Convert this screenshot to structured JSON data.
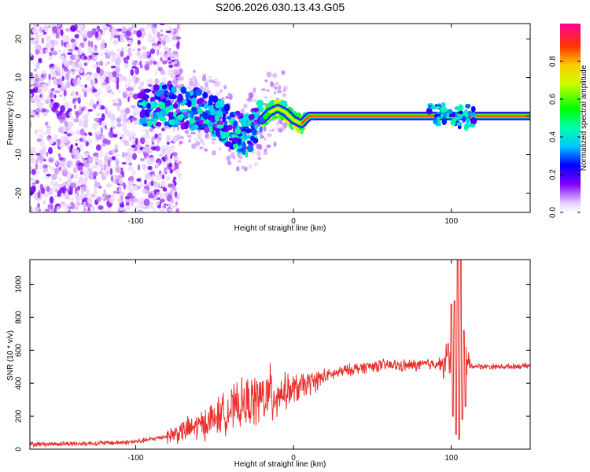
{
  "figure_title": "S206.2026.030.13.43.G05",
  "chart_data": [
    {
      "type": "heatmap",
      "title": "S206.2026.030.13.43.G05",
      "xlabel": "Height of straight line (km)",
      "ylabel": "Frequency (Hz)",
      "xlim": [
        -167,
        150
      ],
      "ylim": [
        -25,
        24
      ],
      "xticks": [
        -100,
        0,
        100
      ],
      "yticks": [
        -20,
        -10,
        0,
        10,
        20
      ],
      "colorbar": {
        "label": "Normalized spectral amplitude",
        "range": [
          0,
          1
        ],
        "ticks": [
          0.0,
          0.2,
          0.4,
          0.6,
          0.8
        ]
      },
      "ridge": [
        {
          "x": -95,
          "freq": 2
        },
        {
          "x": -80,
          "freq": 3
        },
        {
          "x": -70,
          "freq": 2
        },
        {
          "x": -60,
          "freq": 2
        },
        {
          "x": -50,
          "freq": 0
        },
        {
          "x": -40,
          "freq": -3
        },
        {
          "x": -30,
          "freq": -5
        },
        {
          "x": -20,
          "freq": -1
        },
        {
          "x": -15,
          "freq": 1
        },
        {
          "x": -10,
          "freq": 2
        },
        {
          "x": -5,
          "freq": 1
        },
        {
          "x": 0,
          "freq": -1
        },
        {
          "x": 5,
          "freq": -2
        },
        {
          "x": 10,
          "freq": 0
        },
        {
          "x": 20,
          "freq": 0
        },
        {
          "x": 50,
          "freq": 0
        },
        {
          "x": 90,
          "freq": 0
        },
        {
          "x": 100,
          "freq": 0
        },
        {
          "x": 110,
          "freq": 0
        },
        {
          "x": 130,
          "freq": 0
        },
        {
          "x": 150,
          "freq": 0
        }
      ]
    },
    {
      "type": "line",
      "xlabel": "Height of straight line (km)",
      "ylabel": "SNR (10 * v/v)",
      "xlim": [
        -167,
        150
      ],
      "ylim": [
        0,
        1150
      ],
      "xticks": [
        -100,
        0,
        100
      ],
      "yticks": [
        0,
        200,
        400,
        600,
        800,
        1000
      ],
      "color": "#e8302d",
      "envelope": [
        {
          "x": -167,
          "snr": 30
        },
        {
          "x": -130,
          "snr": 35
        },
        {
          "x": -110,
          "snr": 40
        },
        {
          "x": -100,
          "snr": 45
        },
        {
          "x": -90,
          "snr": 60
        },
        {
          "x": -80,
          "snr": 80
        },
        {
          "x": -70,
          "snr": 110
        },
        {
          "x": -60,
          "snr": 140
        },
        {
          "x": -50,
          "snr": 190
        },
        {
          "x": -40,
          "snr": 240
        },
        {
          "x": -30,
          "snr": 280
        },
        {
          "x": -20,
          "snr": 310
        },
        {
          "x": -10,
          "snr": 340
        },
        {
          "x": 0,
          "snr": 360
        },
        {
          "x": 10,
          "snr": 400
        },
        {
          "x": 20,
          "snr": 440
        },
        {
          "x": 30,
          "snr": 470
        },
        {
          "x": 40,
          "snr": 490
        },
        {
          "x": 50,
          "snr": 505
        },
        {
          "x": 60,
          "snr": 510
        },
        {
          "x": 70,
          "snr": 505
        },
        {
          "x": 80,
          "snr": 510
        },
        {
          "x": 90,
          "snr": 520
        },
        {
          "x": 100,
          "snr": 520
        },
        {
          "x": 110,
          "snr": 505
        },
        {
          "x": 130,
          "snr": 500
        },
        {
          "x": 150,
          "snr": 505
        }
      ],
      "spikes": [
        {
          "x": 98,
          "snr": 640
        },
        {
          "x": 100,
          "snr": 880
        },
        {
          "x": 101,
          "snr": 200
        },
        {
          "x": 102,
          "snr": 900
        },
        {
          "x": 103,
          "snr": 90
        },
        {
          "x": 104,
          "snr": 1150
        },
        {
          "x": 105,
          "snr": 60
        },
        {
          "x": 106,
          "snr": 1150
        },
        {
          "x": 107,
          "snr": 180
        },
        {
          "x": 108,
          "snr": 720
        },
        {
          "x": 109,
          "snr": 260
        }
      ]
    }
  ]
}
